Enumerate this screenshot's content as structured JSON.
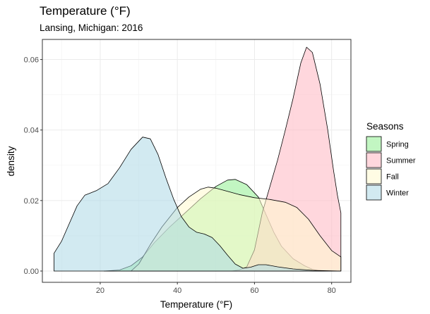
{
  "chart_data": {
    "type": "area",
    "title": "Temperature (°F)",
    "subtitle": "Lansing, Michigan: 2016",
    "xlabel": "Temperature (°F)",
    "ylabel": "density",
    "xlim": [
      5,
      85
    ],
    "ylim": [
      -0.0032,
      0.0657
    ],
    "x_ticks": [
      20,
      40,
      60,
      80
    ],
    "y_ticks": [
      0.0,
      0.02,
      0.04,
      0.06
    ],
    "y_tick_labels": [
      "0.00",
      "0.02",
      "0.04",
      "0.06"
    ],
    "grid": true,
    "legend_title": "Seasons",
    "legend_position": "right",
    "series": [
      {
        "name": "Spring",
        "color": "#90ee90",
        "points": [
          [
            21,
            0.0
          ],
          [
            25,
            0.0003
          ],
          [
            28,
            0.0015
          ],
          [
            31,
            0.004
          ],
          [
            34,
            0.008
          ],
          [
            38,
            0.0125
          ],
          [
            42,
            0.0165
          ],
          [
            46,
            0.0205
          ],
          [
            50,
            0.024
          ],
          [
            53,
            0.0258
          ],
          [
            55,
            0.026
          ],
          [
            58,
            0.0245
          ],
          [
            61,
            0.021
          ],
          [
            63,
            0.016
          ],
          [
            65,
            0.011
          ],
          [
            67,
            0.007
          ],
          [
            70,
            0.0035
          ],
          [
            73,
            0.0015
          ],
          [
            75,
            0.0005
          ],
          [
            77,
            0.0
          ]
        ]
      },
      {
        "name": "Summer",
        "color": "#ffb6c1",
        "points": [
          [
            54,
            0.0
          ],
          [
            56,
            0.0003
          ],
          [
            58,
            0.0012
          ],
          [
            60,
            0.006
          ],
          [
            62,
            0.0165
          ],
          [
            64,
            0.024
          ],
          [
            66,
            0.0315
          ],
          [
            68,
            0.04
          ],
          [
            70,
            0.049
          ],
          [
            72,
            0.059
          ],
          [
            73.5,
            0.0635
          ],
          [
            75,
            0.062
          ],
          [
            77,
            0.053
          ],
          [
            79,
            0.04
          ],
          [
            80.5,
            0.0285
          ],
          [
            81.5,
            0.0215
          ],
          [
            82.4,
            0.0165
          ],
          [
            82.4,
            0.0
          ]
        ]
      },
      {
        "name": "Fall",
        "color": "#fffacd",
        "points": [
          [
            28,
            0.0
          ],
          [
            30,
            0.002
          ],
          [
            33,
            0.0075
          ],
          [
            36,
            0.0125
          ],
          [
            40,
            0.018
          ],
          [
            43,
            0.021
          ],
          [
            46,
            0.0232
          ],
          [
            48,
            0.0238
          ],
          [
            50,
            0.0235
          ],
          [
            53,
            0.0226
          ],
          [
            56,
            0.0217
          ],
          [
            60,
            0.0208
          ],
          [
            64,
            0.0203
          ],
          [
            68,
            0.0195
          ],
          [
            71,
            0.018
          ],
          [
            74,
            0.0147
          ],
          [
            77,
            0.01
          ],
          [
            80,
            0.0058
          ],
          [
            82.4,
            0.004
          ],
          [
            82.4,
            0.0
          ]
        ]
      },
      {
        "name": "Winter",
        "color": "#add8e6",
        "points": [
          [
            8,
            0.005
          ],
          [
            10,
            0.0085
          ],
          [
            12,
            0.0135
          ],
          [
            14,
            0.0185
          ],
          [
            16,
            0.0215
          ],
          [
            19,
            0.0228
          ],
          [
            22,
            0.0248
          ],
          [
            25,
            0.0293
          ],
          [
            28,
            0.0345
          ],
          [
            31,
            0.038
          ],
          [
            33,
            0.0375
          ],
          [
            35,
            0.033
          ],
          [
            37,
            0.0265
          ],
          [
            39,
            0.0205
          ],
          [
            41,
            0.0155
          ],
          [
            43,
            0.0125
          ],
          [
            45,
            0.011
          ],
          [
            47,
            0.0105
          ],
          [
            49,
            0.0095
          ],
          [
            51,
            0.0072
          ],
          [
            53,
            0.0045
          ],
          [
            55,
            0.002
          ],
          [
            57,
            0.0008
          ],
          [
            59,
            0.0011
          ],
          [
            61,
            0.0018
          ],
          [
            63,
            0.0018
          ],
          [
            66,
            0.0012
          ],
          [
            70,
            0.0006
          ],
          [
            75,
            0.0002
          ],
          [
            82.4,
            0.0
          ]
        ]
      }
    ]
  }
}
